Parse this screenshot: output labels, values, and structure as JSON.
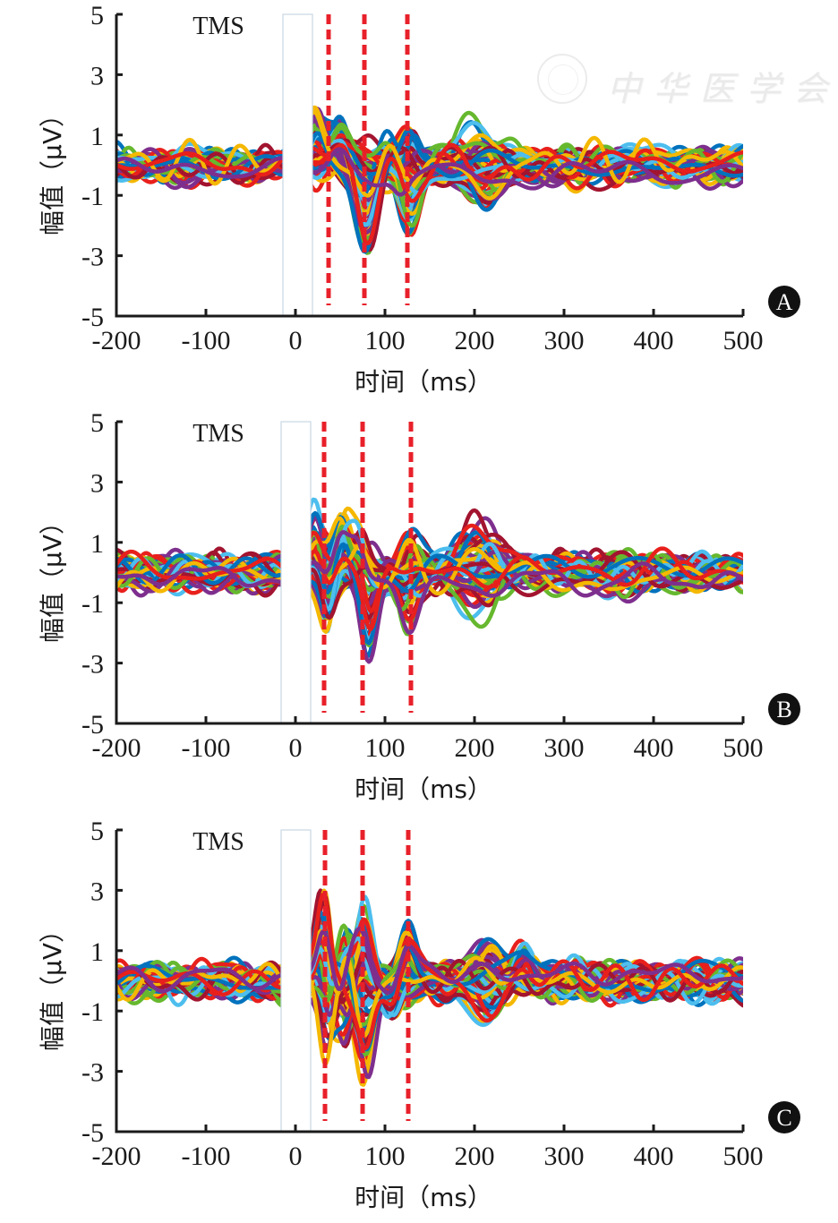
{
  "figure": {
    "watermark_text": "中华医学会"
  },
  "chart_data": [
    {
      "type": "line",
      "panel_label": "A",
      "stimulus_label": "TMS",
      "xlabel": "时间（ms）",
      "ylabel": "幅值（μV）",
      "xlim": [
        -200,
        500
      ],
      "ylim": [
        -5,
        5
      ],
      "xticks": [
        -200,
        -100,
        0,
        100,
        200,
        300,
        400,
        500
      ],
      "yticks": [
        5,
        3,
        1,
        -1,
        -3,
        -5
      ],
      "xtick_labels": [
        "-200",
        "-100",
        "0",
        "100",
        "200",
        "300",
        "400",
        "500"
      ],
      "ytick_labels": [
        "5",
        "3",
        "1",
        "-1",
        "-3",
        "-5"
      ],
      "grid": false,
      "stimulus_artifact_window_ms": [
        -8,
        12
      ],
      "marker_lines_ms": [
        37,
        77,
        125
      ],
      "marker_line_color": "#e8202a",
      "n_channels": 60,
      "channel_colors": [
        "#0072bd",
        "#f5b800",
        "#e8201c",
        "#7e2f8e",
        "#66b82e",
        "#4dbeee",
        "#a2142f"
      ],
      "baseline_noise_uv": 0.25,
      "components": [
        {
          "latency_ms": 22,
          "amplitude_uv": 1.6,
          "width_ms": 9
        },
        {
          "latency_ms": 50,
          "amplitude_uv": 1.3,
          "width_ms": 10
        },
        {
          "latency_ms": 80,
          "amplitude_uv": -2.6,
          "width_ms": 11
        },
        {
          "latency_ms": 105,
          "amplitude_uv": 0.6,
          "width_ms": 10
        },
        {
          "latency_ms": 126,
          "amplitude_uv": -2.4,
          "width_ms": 11
        },
        {
          "latency_ms": 128,
          "amplitude_uv": 1.2,
          "width_ms": 8
        },
        {
          "latency_ms": 205,
          "amplitude_uv": 1.3,
          "width_ms": 22
        },
        {
          "latency_ms": 212,
          "amplitude_uv": -1.2,
          "width_ms": 20
        }
      ],
      "peak_range_uv": {
        "max": 2.3,
        "min": -2.9
      }
    },
    {
      "type": "line",
      "panel_label": "B",
      "stimulus_label": "TMS",
      "xlabel": "时间（ms）",
      "ylabel": "幅值（μV）",
      "xlim": [
        -200,
        500
      ],
      "ylim": [
        -5,
        5
      ],
      "xticks": [
        -200,
        -100,
        0,
        100,
        200,
        300,
        400,
        500
      ],
      "yticks": [
        5,
        3,
        1,
        -1,
        -3,
        -5
      ],
      "xtick_labels": [
        "-200",
        "-100",
        "0",
        "100",
        "200",
        "300",
        "400",
        "500"
      ],
      "ytick_labels": [
        "5",
        "3",
        "1",
        "-1",
        "-3",
        "-5"
      ],
      "grid": false,
      "stimulus_artifact_window_ms": [
        -10,
        10
      ],
      "marker_lines_ms": [
        32,
        75,
        129
      ],
      "marker_line_color": "#e8202a",
      "n_channels": 60,
      "channel_colors": [
        "#0072bd",
        "#f5b800",
        "#e8201c",
        "#7e2f8e",
        "#66b82e",
        "#4dbeee",
        "#a2142f"
      ],
      "baseline_noise_uv": 0.28,
      "components": [
        {
          "latency_ms": 22,
          "amplitude_uv": 1.8,
          "width_ms": 8
        },
        {
          "latency_ms": 35,
          "amplitude_uv": -1.8,
          "width_ms": 8
        },
        {
          "latency_ms": 52,
          "amplitude_uv": 2.0,
          "width_ms": 9
        },
        {
          "latency_ms": 80,
          "amplitude_uv": -2.7,
          "width_ms": 9
        },
        {
          "latency_ms": 72,
          "amplitude_uv": 1.0,
          "width_ms": 7
        },
        {
          "latency_ms": 125,
          "amplitude_uv": -1.6,
          "width_ms": 10
        },
        {
          "latency_ms": 128,
          "amplitude_uv": 1.4,
          "width_ms": 10
        },
        {
          "latency_ms": 205,
          "amplitude_uv": 1.6,
          "width_ms": 22
        },
        {
          "latency_ms": 205,
          "amplitude_uv": -1.1,
          "width_ms": 20
        }
      ],
      "peak_range_uv": {
        "max": 2.7,
        "min": -3.3
      }
    },
    {
      "type": "line",
      "panel_label": "C",
      "stimulus_label": "TMS",
      "xlabel": "时间（ms）",
      "ylabel": "幅值（μV）",
      "xlim": [
        -200,
        500
      ],
      "ylim": [
        -5,
        5
      ],
      "xticks": [
        -200,
        -100,
        0,
        100,
        200,
        300,
        400,
        500
      ],
      "yticks": [
        5,
        3,
        1,
        -1,
        -3,
        -5
      ],
      "xtick_labels": [
        "-200",
        "-100",
        "0",
        "100",
        "200",
        "300",
        "400",
        "500"
      ],
      "ytick_labels": [
        "5",
        "3",
        "1",
        "-1",
        "-3",
        "-5"
      ],
      "grid": false,
      "stimulus_artifact_window_ms": [
        -10,
        10
      ],
      "marker_lines_ms": [
        33,
        75,
        126
      ],
      "marker_line_color": "#e8202a",
      "n_channels": 60,
      "channel_colors": [
        "#0072bd",
        "#f5b800",
        "#e8201c",
        "#7e2f8e",
        "#66b82e",
        "#4dbeee",
        "#a2142f"
      ],
      "baseline_noise_uv": 0.28,
      "components": [
        {
          "latency_ms": 30,
          "amplitude_uv": 2.8,
          "width_ms": 7
        },
        {
          "latency_ms": 35,
          "amplitude_uv": -2.4,
          "width_ms": 7
        },
        {
          "latency_ms": 55,
          "amplitude_uv": 2.2,
          "width_ms": 8
        },
        {
          "latency_ms": 55,
          "amplitude_uv": -2.2,
          "width_ms": 8
        },
        {
          "latency_ms": 78,
          "amplitude_uv": -2.8,
          "width_ms": 9
        },
        {
          "latency_ms": 75,
          "amplitude_uv": 2.0,
          "width_ms": 8
        },
        {
          "latency_ms": 125,
          "amplitude_uv": 1.4,
          "width_ms": 9
        },
        {
          "latency_ms": 110,
          "amplitude_uv": -1.0,
          "width_ms": 10
        },
        {
          "latency_ms": 210,
          "amplitude_uv": 1.2,
          "width_ms": 18
        },
        {
          "latency_ms": 215,
          "amplitude_uv": -1.2,
          "width_ms": 18
        },
        {
          "latency_ms": 255,
          "amplitude_uv": 1.0,
          "width_ms": 10
        }
      ],
      "peak_range_uv": {
        "max": 3.3,
        "min": -3.6
      }
    }
  ]
}
